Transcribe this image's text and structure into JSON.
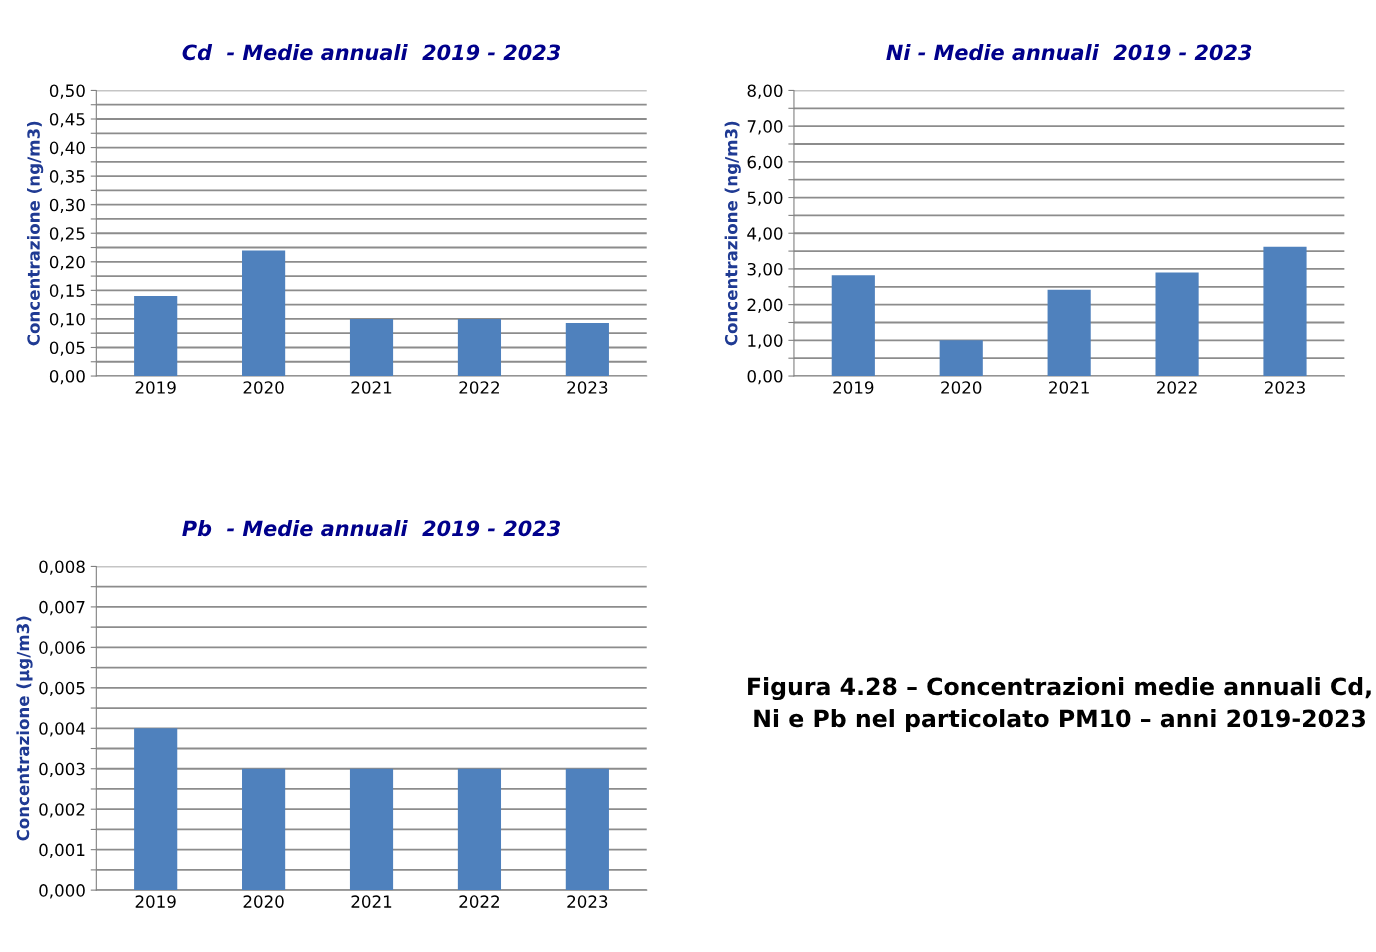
{
  "chart_data": [
    {
      "type": "bar",
      "title": "Cd  - Medie annuali  2019 - 2023",
      "ylabel": "Concentrazione (ng/m3)",
      "categories": [
        "2019",
        "2020",
        "2021",
        "2022",
        "2023"
      ],
      "values": [
        0.14,
        0.22,
        0.1,
        0.1,
        0.093
      ],
      "color": "#4f81bd",
      "ylim": [
        0,
        0.5
      ],
      "yticks": [
        {
          "value": 0,
          "label": "0,00"
        },
        {
          "value": 0.025,
          "label": null
        },
        {
          "value": 0.05,
          "label": "0,05"
        },
        {
          "value": 0.075,
          "label": null
        },
        {
          "value": 0.1,
          "label": "0,10"
        },
        {
          "value": 0.125,
          "label": null
        },
        {
          "value": 0.15,
          "label": "0,15"
        },
        {
          "value": 0.175,
          "label": null
        },
        {
          "value": 0.2,
          "label": "0,20"
        },
        {
          "value": 0.225,
          "label": null
        },
        {
          "value": 0.25,
          "label": "0,25"
        },
        {
          "value": 0.275,
          "label": null
        },
        {
          "value": 0.3,
          "label": "0,30"
        },
        {
          "value": 0.325,
          "label": null
        },
        {
          "value": 0.35,
          "label": "0,35"
        },
        {
          "value": 0.375,
          "label": null
        },
        {
          "value": 0.4,
          "label": "0,40"
        },
        {
          "value": 0.425,
          "label": null
        },
        {
          "value": 0.45,
          "label": "0,45"
        },
        {
          "value": 0.475,
          "label": null
        },
        {
          "value": 0.5,
          "label": "0,50"
        }
      ],
      "grid": "y"
    },
    {
      "type": "bar",
      "title": "Ni - Medie annuali  2019 - 2023",
      "ylabel": "Concentrazione (ng/m3)",
      "categories": [
        "2019",
        "2020",
        "2021",
        "2022",
        "2023"
      ],
      "values": [
        2.82,
        1.0,
        2.42,
        2.9,
        3.62
      ],
      "color": "#4f81bd",
      "ylim": [
        0,
        8
      ],
      "yticks": [
        {
          "value": 0,
          "label": "0,00"
        },
        {
          "value": 0.5,
          "label": null
        },
        {
          "value": 1,
          "label": "1,00"
        },
        {
          "value": 1.5,
          "label": null
        },
        {
          "value": 2,
          "label": "2,00"
        },
        {
          "value": 2.5,
          "label": null
        },
        {
          "value": 3,
          "label": "3,00"
        },
        {
          "value": 3.5,
          "label": null
        },
        {
          "value": 4,
          "label": "4,00"
        },
        {
          "value": 4.5,
          "label": null
        },
        {
          "value": 5,
          "label": "5,00"
        },
        {
          "value": 5.5,
          "label": null
        },
        {
          "value": 6,
          "label": "6,00"
        },
        {
          "value": 6.5,
          "label": null
        },
        {
          "value": 7,
          "label": "7,00"
        },
        {
          "value": 7.5,
          "label": null
        },
        {
          "value": 8,
          "label": "8,00"
        }
      ],
      "grid": "y"
    },
    {
      "type": "bar",
      "title": "Pb  - Medie annuali  2019 - 2023",
      "ylabel": "Concentrazione (µg/m3)",
      "categories": [
        "2019",
        "2020",
        "2021",
        "2022",
        "2023"
      ],
      "values": [
        0.004,
        0.003,
        0.003,
        0.003,
        0.003
      ],
      "color": "#4f81bd",
      "ylim": [
        0,
        0.008
      ],
      "yticks": [
        {
          "value": 0,
          "label": "0,000"
        },
        {
          "value": 0.0005,
          "label": null
        },
        {
          "value": 0.001,
          "label": "0,001"
        },
        {
          "value": 0.0015,
          "label": null
        },
        {
          "value": 0.002,
          "label": "0,002"
        },
        {
          "value": 0.0025,
          "label": null
        },
        {
          "value": 0.003,
          "label": "0,003"
        },
        {
          "value": 0.0035,
          "label": null
        },
        {
          "value": 0.004,
          "label": "0,004"
        },
        {
          "value": 0.0045,
          "label": null
        },
        {
          "value": 0.005,
          "label": "0,005"
        },
        {
          "value": 0.0055,
          "label": null
        },
        {
          "value": 0.006,
          "label": "0,006"
        },
        {
          "value": 0.0065,
          "label": null
        },
        {
          "value": 0.007,
          "label": "0,007"
        },
        {
          "value": 0.0075,
          "label": null
        },
        {
          "value": 0.008,
          "label": "0,008"
        }
      ],
      "grid": "y",
      "annotations": [
        "Figura 4.28 – Concentrazioni medie annuali Cd, Ni e Pb nel particolato PM10 – anni 2019-2023"
      ]
    }
  ]
}
